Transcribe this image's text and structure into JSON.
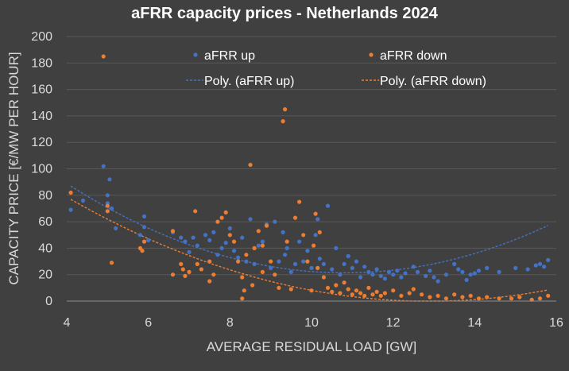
{
  "chart_data": {
    "type": "scatter",
    "title": "aFRR capacity prices - Netherlands 2024",
    "xlabel": "AVERAGE RESIDUAL LOAD [GW]",
    "ylabel": "CAPACITY PRICE [€/MW PER HOUR]",
    "xlim": [
      4,
      16
    ],
    "ylim": [
      0,
      200
    ],
    "xticks": [
      4,
      6,
      8,
      10,
      12,
      14,
      16
    ],
    "yticks": [
      0,
      20,
      40,
      60,
      80,
      100,
      120,
      140,
      160,
      180,
      200
    ],
    "grid": "horizontal",
    "legend_position": "top-center",
    "series": [
      {
        "name": "aFRR up",
        "color": "#4472c4",
        "points": [
          [
            4.1,
            69
          ],
          [
            4.4,
            76
          ],
          [
            4.9,
            102
          ],
          [
            5.0,
            80
          ],
          [
            5.05,
            92
          ],
          [
            5.0,
            74
          ],
          [
            5.2,
            55
          ],
          [
            5.1,
            70
          ],
          [
            5.9,
            64
          ],
          [
            5.8,
            50
          ],
          [
            6.0,
            46
          ],
          [
            5.9,
            56
          ],
          [
            6.6,
            52
          ],
          [
            6.8,
            48
          ],
          [
            6.9,
            45
          ],
          [
            7.0,
            37
          ],
          [
            7.1,
            48
          ],
          [
            7.2,
            42
          ],
          [
            7.4,
            50
          ],
          [
            7.5,
            46
          ],
          [
            7.6,
            52
          ],
          [
            7.7,
            35
          ],
          [
            7.8,
            40
          ],
          [
            7.9,
            44
          ],
          [
            8.0,
            55
          ],
          [
            8.1,
            38
          ],
          [
            8.2,
            33
          ],
          [
            8.3,
            48
          ],
          [
            8.4,
            30
          ],
          [
            8.5,
            62
          ],
          [
            8.6,
            28
          ],
          [
            8.7,
            42
          ],
          [
            8.8,
            45
          ],
          [
            8.9,
            58
          ],
          [
            9.0,
            25
          ],
          [
            9.1,
            60
          ],
          [
            9.2,
            30
          ],
          [
            9.3,
            52
          ],
          [
            9.35,
            35
          ],
          [
            9.4,
            40
          ],
          [
            9.5,
            22
          ],
          [
            9.6,
            28
          ],
          [
            9.7,
            45
          ],
          [
            9.8,
            30
          ],
          [
            9.9,
            38
          ],
          [
            10.0,
            25
          ],
          [
            10.1,
            50
          ],
          [
            10.15,
            62
          ],
          [
            10.2,
            32
          ],
          [
            10.3,
            28
          ],
          [
            10.4,
            72
          ],
          [
            10.5,
            24
          ],
          [
            10.6,
            40
          ],
          [
            10.7,
            20
          ],
          [
            10.8,
            28
          ],
          [
            10.9,
            34
          ],
          [
            11.0,
            25
          ],
          [
            11.1,
            30
          ],
          [
            11.2,
            18
          ],
          [
            11.3,
            26
          ],
          [
            11.4,
            22
          ],
          [
            11.5,
            20
          ],
          [
            11.6,
            24
          ],
          [
            11.7,
            19
          ],
          [
            11.8,
            17
          ],
          [
            11.9,
            22
          ],
          [
            12.0,
            20
          ],
          [
            12.1,
            23
          ],
          [
            12.2,
            18
          ],
          [
            12.3,
            21
          ],
          [
            12.5,
            26
          ],
          [
            12.6,
            22
          ],
          [
            12.8,
            19
          ],
          [
            12.9,
            23
          ],
          [
            13.0,
            18
          ],
          [
            13.1,
            15
          ],
          [
            13.3,
            20
          ],
          [
            13.5,
            28
          ],
          [
            13.6,
            24
          ],
          [
            13.7,
            22
          ],
          [
            13.8,
            16
          ],
          [
            13.9,
            20
          ],
          [
            14.0,
            21
          ],
          [
            14.1,
            23
          ],
          [
            14.3,
            25
          ],
          [
            14.6,
            22
          ],
          [
            15.0,
            25
          ],
          [
            15.3,
            24
          ],
          [
            15.5,
            27
          ],
          [
            15.6,
            28
          ],
          [
            15.8,
            31
          ],
          [
            15.7,
            26
          ]
        ]
      },
      {
        "name": "aFRR down",
        "color": "#ed7d31",
        "points": [
          [
            4.1,
            82
          ],
          [
            4.9,
            185
          ],
          [
            5.0,
            72
          ],
          [
            5.0,
            68
          ],
          [
            5.1,
            29
          ],
          [
            5.8,
            40
          ],
          [
            5.85,
            38
          ],
          [
            5.9,
            45
          ],
          [
            6.6,
            20
          ],
          [
            6.6,
            53
          ],
          [
            6.8,
            28
          ],
          [
            6.85,
            24
          ],
          [
            6.9,
            19
          ],
          [
            7.0,
            22
          ],
          [
            7.15,
            68
          ],
          [
            7.2,
            28
          ],
          [
            7.3,
            24
          ],
          [
            7.5,
            30
          ],
          [
            7.6,
            20
          ],
          [
            7.7,
            60
          ],
          [
            7.8,
            63
          ],
          [
            7.9,
            67
          ],
          [
            8.0,
            50
          ],
          [
            8.1,
            45
          ],
          [
            8.2,
            30
          ],
          [
            8.3,
            18
          ],
          [
            8.35,
            8
          ],
          [
            8.4,
            35
          ],
          [
            8.5,
            103
          ],
          [
            8.55,
            12
          ],
          [
            8.6,
            40
          ],
          [
            8.7,
            53
          ],
          [
            8.8,
            42
          ],
          [
            8.9,
            57
          ],
          [
            9.0,
            30
          ],
          [
            9.1,
            20
          ],
          [
            9.2,
            10
          ],
          [
            9.3,
            136
          ],
          [
            9.35,
            145
          ],
          [
            9.4,
            45
          ],
          [
            9.5,
            9
          ],
          [
            9.6,
            63
          ],
          [
            9.7,
            75
          ],
          [
            9.8,
            50
          ],
          [
            9.9,
            30
          ],
          [
            10.0,
            8
          ],
          [
            10.05,
            42
          ],
          [
            10.1,
            66
          ],
          [
            10.15,
            25
          ],
          [
            10.2,
            52
          ],
          [
            10.3,
            18
          ],
          [
            10.4,
            10
          ],
          [
            10.5,
            7
          ],
          [
            10.6,
            12
          ],
          [
            10.7,
            6
          ],
          [
            10.8,
            14
          ],
          [
            10.9,
            9
          ],
          [
            11.0,
            5
          ],
          [
            11.1,
            8
          ],
          [
            11.2,
            6
          ],
          [
            11.3,
            4
          ],
          [
            11.4,
            10
          ],
          [
            11.5,
            5
          ],
          [
            11.6,
            7
          ],
          [
            11.7,
            4
          ],
          [
            11.8,
            6
          ],
          [
            12.0,
            8
          ],
          [
            12.2,
            4
          ],
          [
            12.4,
            6
          ],
          [
            12.5,
            9
          ],
          [
            12.7,
            5
          ],
          [
            12.9,
            3
          ],
          [
            13.1,
            4
          ],
          [
            13.3,
            2
          ],
          [
            13.5,
            5
          ],
          [
            13.7,
            3
          ],
          [
            13.9,
            4
          ],
          [
            14.1,
            2
          ],
          [
            14.3,
            3
          ],
          [
            14.6,
            2
          ],
          [
            14.9,
            2
          ],
          [
            15.1,
            3
          ],
          [
            15.4,
            1
          ],
          [
            15.6,
            2
          ],
          [
            15.8,
            4
          ],
          [
            8.3,
            2
          ],
          [
            7.5,
            15
          ],
          [
            8.8,
            22
          ]
        ]
      }
    ],
    "trendlines": [
      {
        "name": "Poly. (aFRR up)",
        "color": "#4472c4",
        "style": "dashed",
        "type": "polynomial",
        "coefficients": [
          191.35,
          -31.4,
          1.45
        ]
      },
      {
        "name": "Poly. (aFRR down)",
        "color": "#ed7d31",
        "style": "dashed",
        "type": "polynomial",
        "coefficients": [
          165.64,
          -25.75,
          1.0
        ]
      }
    ]
  }
}
